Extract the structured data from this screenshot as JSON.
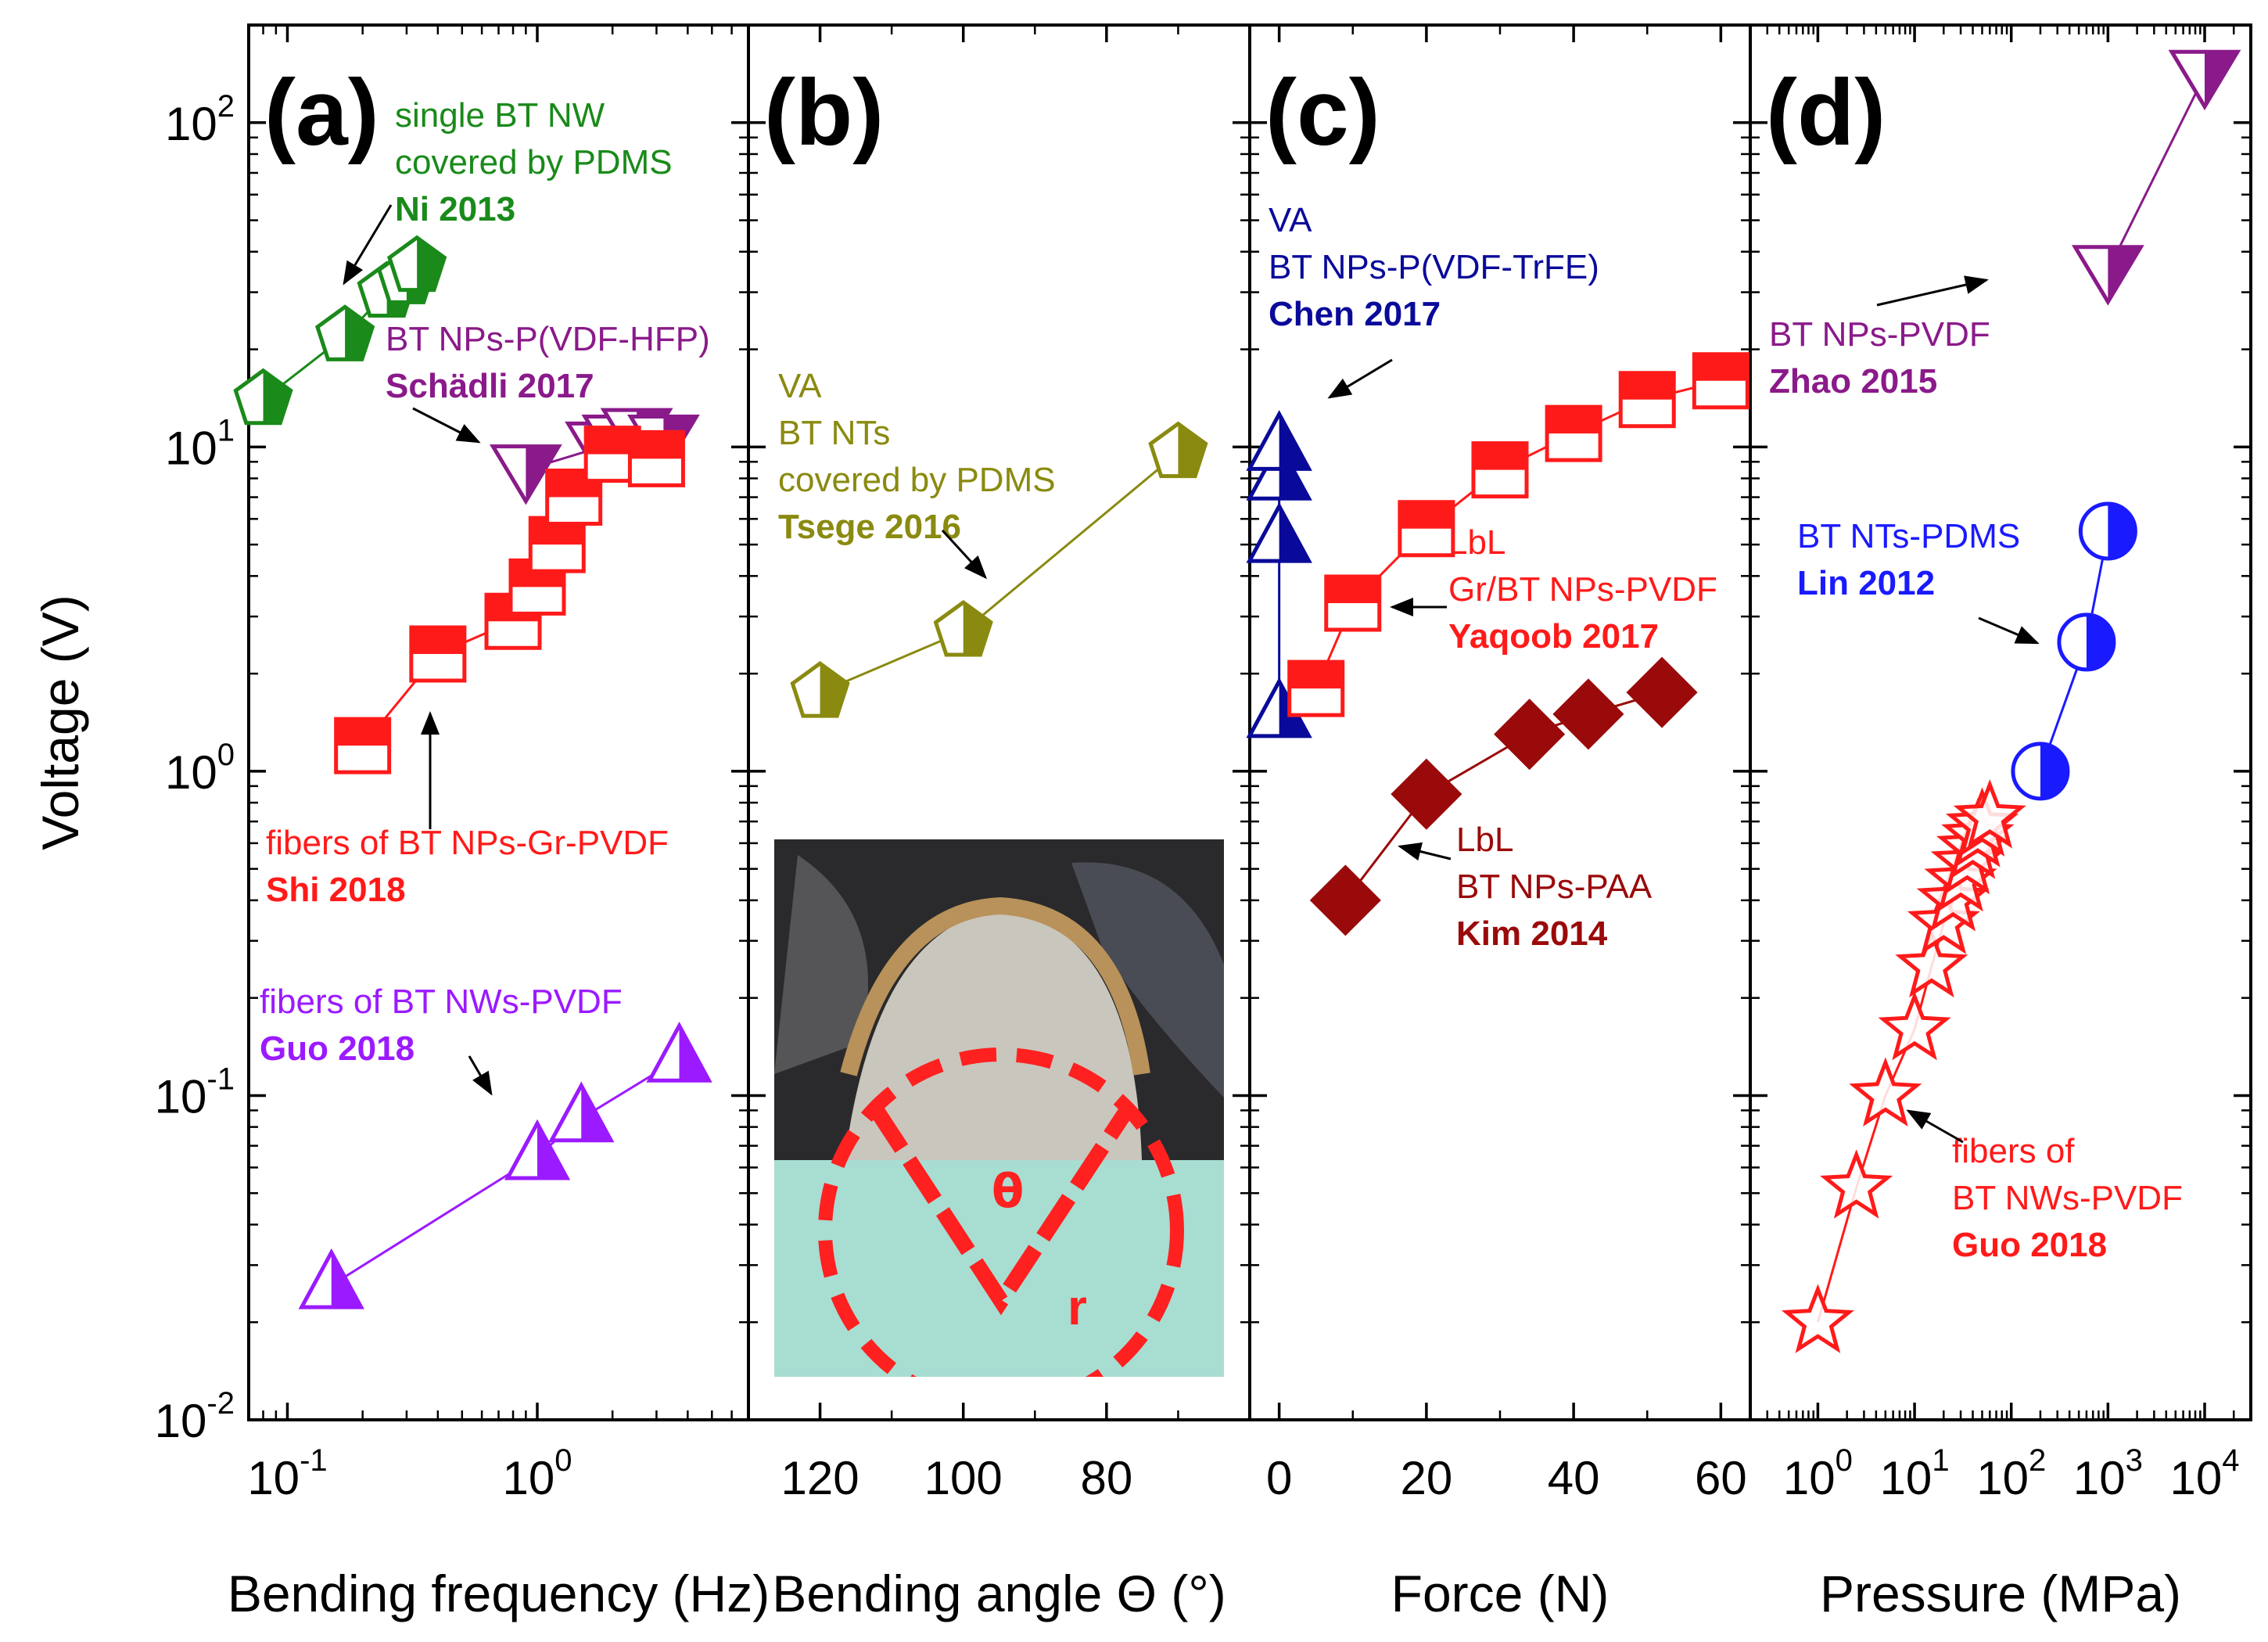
{
  "figure": {
    "y_axis": {
      "label": "Voltage (V)",
      "scale": "log",
      "ylim": [
        0.01,
        200
      ],
      "ticks": [
        {
          "value": 0.01,
          "base": "10",
          "exp": "-2"
        },
        {
          "value": 0.1,
          "base": "10",
          "exp": "-1"
        },
        {
          "value": 1,
          "base": "10",
          "exp": "0"
        },
        {
          "value": 10,
          "base": "10",
          "exp": "1"
        },
        {
          "value": 100,
          "base": "10",
          "exp": "2"
        }
      ]
    },
    "colors": {
      "green": "#1a8a1a",
      "purple": "#8a1a8a",
      "red": "#ff1a1a",
      "violet": "#9b1aff",
      "olive": "#8a8a10",
      "navy": "#0a0a9a",
      "darkred": "#9a0a0a",
      "blue": "#1a1aff"
    }
  },
  "chart_data": [
    {
      "panel": "(a)",
      "type": "scatter",
      "xlabel": "Bending frequency (Hz)",
      "x_scale": "log",
      "xlim": [
        0.07,
        7
      ],
      "x_ticks": [
        {
          "value": 0.1,
          "base": "10",
          "exp": "-1"
        },
        {
          "value": 1,
          "base": "10",
          "exp": "0"
        }
      ],
      "ylabel": "Voltage (V)",
      "ylim": [
        0.01,
        200
      ],
      "series": [
        {
          "name": "single BT NW covered by PDMS",
          "marker": "pentagon",
          "color": "green",
          "x": [
            0.08,
            0.17,
            0.25,
            0.3,
            0.33
          ],
          "y": [
            14,
            22,
            30,
            33,
            36
          ],
          "annotation": {
            "lines": [
              "single BT NW",
              "covered by PDMS"
            ],
            "bold": "Ni 2013"
          }
        },
        {
          "name": "BT NPs-P(VDF-HFP)",
          "marker": "triangle-down",
          "color": "purple",
          "x": [
            0.9,
            1.8,
            2.1,
            2.5,
            3.2
          ],
          "y": [
            8.5,
            10,
            10.5,
            11,
            10.5
          ],
          "annotation": {
            "lines": [
              "BT NPs-P(VDF-HFP)"
            ],
            "bold": "Schädli 2017"
          }
        },
        {
          "name": "fibers of BT NPs-Gr-PVDF",
          "marker": "square",
          "color": "red",
          "x": [
            0.2,
            0.4,
            0.8,
            1.0,
            1.2,
            1.4,
            2.0,
            3.0
          ],
          "y": [
            1.2,
            2.3,
            2.9,
            3.7,
            5.0,
            7.0,
            9.5,
            9.2
          ],
          "annotation": {
            "lines": [
              "fibers of BT NPs-Gr-PVDF"
            ],
            "bold": "Shi 2018"
          }
        },
        {
          "name": "fibers of BT NWs-PVDF",
          "marker": "triangle-up",
          "color": "violet",
          "x": [
            0.15,
            1.0,
            1.5,
            3.7
          ],
          "y": [
            0.026,
            0.065,
            0.085,
            0.13
          ],
          "annotation": {
            "lines": [
              "fibers of BT NWs-PVDF"
            ],
            "bold": "Guo 2018"
          }
        }
      ]
    },
    {
      "panel": "(b)",
      "type": "scatter",
      "xlabel": "Bending angle Θ (°)",
      "x_scale": "linear",
      "x_reversed": true,
      "xlim": [
        130,
        60
      ],
      "x_ticks": [
        {
          "value": 120,
          "label": "120"
        },
        {
          "value": 100,
          "label": "100"
        },
        {
          "value": 80,
          "label": "80"
        }
      ],
      "ylabel": "Voltage (V)",
      "ylim": [
        0.01,
        200
      ],
      "series": [
        {
          "name": "VA BT NTs covered by PDMS",
          "marker": "pentagon",
          "color": "olive",
          "x": [
            120,
            100,
            70
          ],
          "y": [
            1.75,
            2.7,
            9.6
          ],
          "annotation": {
            "lines": [
              "VA",
              "BT NTs",
              "covered by PDMS"
            ],
            "bold": "Tsege 2016"
          }
        }
      ],
      "inset": {
        "labels": [
          "θ",
          "r"
        ]
      }
    },
    {
      "panel": "(c)",
      "type": "scatter",
      "xlabel": "Force (N)",
      "x_scale": "linear",
      "xlim": [
        -4,
        64
      ],
      "x_ticks": [
        {
          "value": 0,
          "label": "0"
        },
        {
          "value": 20,
          "label": "20"
        },
        {
          "value": 40,
          "label": "40"
        },
        {
          "value": 60,
          "label": "60"
        }
      ],
      "ylabel": "Voltage (V)",
      "ylim": [
        0.01,
        200
      ],
      "series": [
        {
          "name": "VA BT NPs-P(VDF-TrFE)",
          "marker": "triangle-up",
          "color": "navy",
          "x": [
            0,
            0,
            0,
            0
          ],
          "y": [
            1.5,
            5.2,
            8.1,
            10
          ],
          "annotation": {
            "lines": [
              "VA",
              "BT NPs-P(VDF-TrFE)"
            ],
            "bold": "Chen 2017"
          }
        },
        {
          "name": "LbL Gr/BT NPs-PVDF",
          "marker": "square",
          "color": "red",
          "x": [
            5,
            10,
            20,
            30,
            40,
            50,
            60
          ],
          "y": [
            1.8,
            3.3,
            5.6,
            8.5,
            11,
            14,
            16
          ],
          "annotation": {
            "lines": [
              "LbL",
              "Gr/BT NPs-PVDF"
            ],
            "bold": "Yaqoob 2017"
          }
        },
        {
          "name": "LbL BT NPs-PAA",
          "marker": "diamond",
          "color": "darkred",
          "x": [
            9,
            20,
            34,
            42,
            52
          ],
          "y": [
            0.4,
            0.85,
            1.3,
            1.5,
            1.75
          ],
          "annotation": {
            "lines": [
              "LbL",
              "BT NPs-PAA"
            ],
            "bold": "Kim 2014"
          }
        }
      ]
    },
    {
      "panel": "(d)",
      "type": "scatter",
      "xlabel": "Pressure (MPa)",
      "x_scale": "log",
      "xlim": [
        0.2,
        30000
      ],
      "x_ticks": [
        {
          "value": 1,
          "base": "10",
          "exp": "0"
        },
        {
          "value": 10,
          "base": "10",
          "exp": "1"
        },
        {
          "value": 100,
          "base": "10",
          "exp": "2"
        },
        {
          "value": 1000,
          "base": "10",
          "exp": "3"
        },
        {
          "value": 10000,
          "base": "10",
          "exp": "4"
        }
      ],
      "ylabel": "Voltage (V)",
      "ylim": [
        0.01,
        200
      ],
      "series": [
        {
          "name": "BT NPs-PVDF",
          "marker": "triangle-down",
          "color": "purple",
          "x": [
            1000,
            10000
          ],
          "y": [
            35,
            140
          ],
          "annotation": {
            "lines": [
              "BT NPs-PVDF"
            ],
            "bold": "Zhao 2015"
          }
        },
        {
          "name": "BT NTs-PDMS",
          "marker": "circle",
          "color": "blue",
          "x": [
            200,
            600,
            1000
          ],
          "y": [
            1.0,
            2.5,
            5.5
          ],
          "annotation": {
            "lines": [
              "BT NTs-PDMS"
            ],
            "bold": "Lin 2012"
          }
        },
        {
          "name": "fibers of BT NWs-PVDF",
          "marker": "star",
          "color": "red",
          "x": [
            1,
            2.5,
            5,
            10,
            15,
            20,
            25,
            30,
            35,
            40,
            45,
            50,
            60
          ],
          "y": [
            0.02,
            0.052,
            0.1,
            0.16,
            0.25,
            0.34,
            0.4,
            0.46,
            0.52,
            0.58,
            0.63,
            0.68,
            0.72
          ],
          "annotation": {
            "lines": [
              "fibers of",
              "BT NWs-PVDF"
            ],
            "bold": "Guo 2018"
          }
        }
      ]
    }
  ]
}
